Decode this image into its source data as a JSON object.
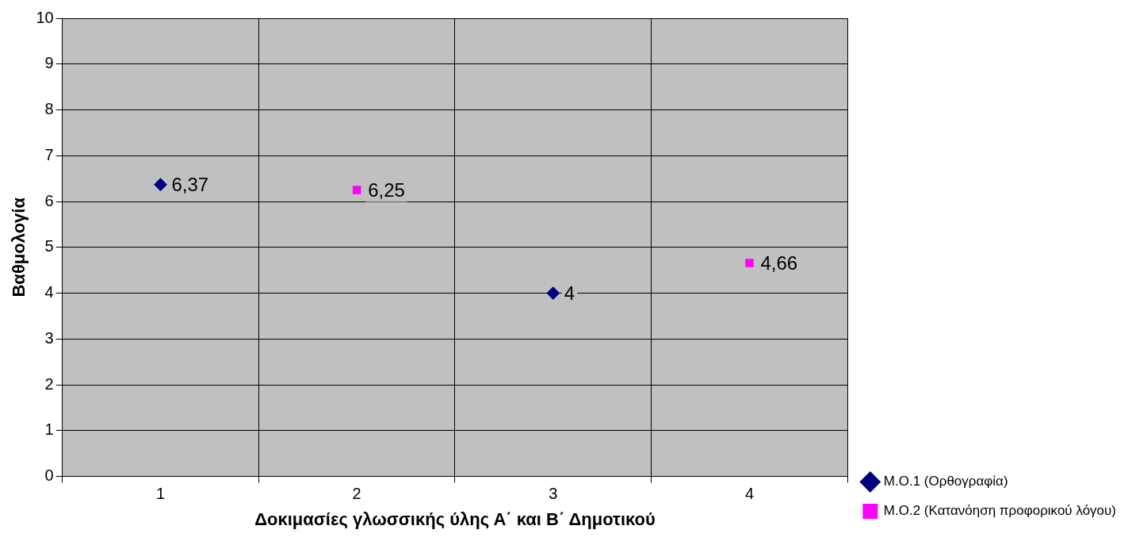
{
  "chart_data": {
    "type": "scatter",
    "xlabel": "Δοκιμασίες γλωσσικής ύλης Α΄ και Β΄ Δημοτικού",
    "ylabel": "Βαθμολογία",
    "categories": [
      "1",
      "2",
      "3",
      "4"
    ],
    "series": [
      {
        "name": "Μ.Ο.1 (Ορθογραφία)",
        "color": "#000080",
        "marker": "diamond",
        "values": [
          6.37,
          null,
          4,
          null
        ],
        "value_labels": [
          "6,37",
          null,
          "4",
          null
        ]
      },
      {
        "name": "Μ.Ο.2 (Κατανόηση προφορικού λόγου)",
        "color": "#ff00ff",
        "marker": "square",
        "values": [
          null,
          6.25,
          null,
          4.66
        ],
        "value_labels": [
          null,
          "6,25",
          null,
          "4,66"
        ]
      }
    ],
    "ylim": [
      0,
      10
    ],
    "yticks": [
      0,
      1,
      2,
      3,
      4,
      5,
      6,
      7,
      8,
      9,
      10
    ],
    "grid": true,
    "legend": "bottom right"
  }
}
